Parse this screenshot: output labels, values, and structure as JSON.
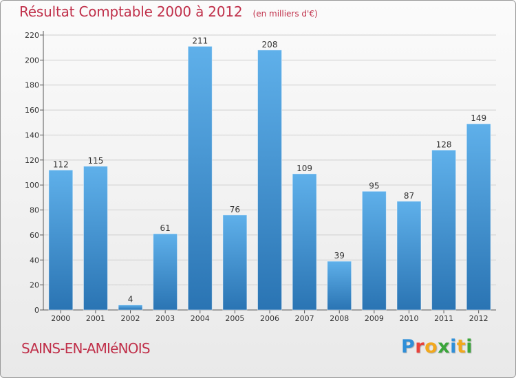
{
  "chart_data": {
    "type": "bar",
    "title": "Résultat Comptable 2000 à 2012",
    "subtitle": "(en milliers d'€)",
    "categories": [
      "2000",
      "2001",
      "2002",
      "2003",
      "2004",
      "2005",
      "2006",
      "2007",
      "2008",
      "2009",
      "2010",
      "2011",
      "2012"
    ],
    "values": [
      112,
      115,
      4,
      61,
      211,
      76,
      208,
      109,
      39,
      95,
      87,
      128,
      149
    ],
    "ylim": [
      0,
      220
    ],
    "yticks": [
      0,
      20,
      40,
      60,
      80,
      100,
      120,
      140,
      160,
      180,
      200,
      220
    ],
    "grid": true,
    "xlabel": "",
    "ylabel": "",
    "colors": {
      "bar_top": "#5fb0ea",
      "bar_bottom": "#2a74b3",
      "title": "#c0304a"
    }
  },
  "footer": {
    "place": "SAINS-EN-AMIéNOIS",
    "brand_letters": [
      {
        "ch": "P",
        "color": "#2f8fd8"
      },
      {
        "ch": "r",
        "color": "#e8423b"
      },
      {
        "ch": "o",
        "color": "#f2a81d"
      },
      {
        "ch": "x",
        "color": "#3aa53a"
      },
      {
        "ch": "i",
        "color": "#2f8fd8"
      },
      {
        "ch": "t",
        "color": "#f2a81d"
      },
      {
        "ch": "i",
        "color": "#3aa53a"
      }
    ]
  }
}
